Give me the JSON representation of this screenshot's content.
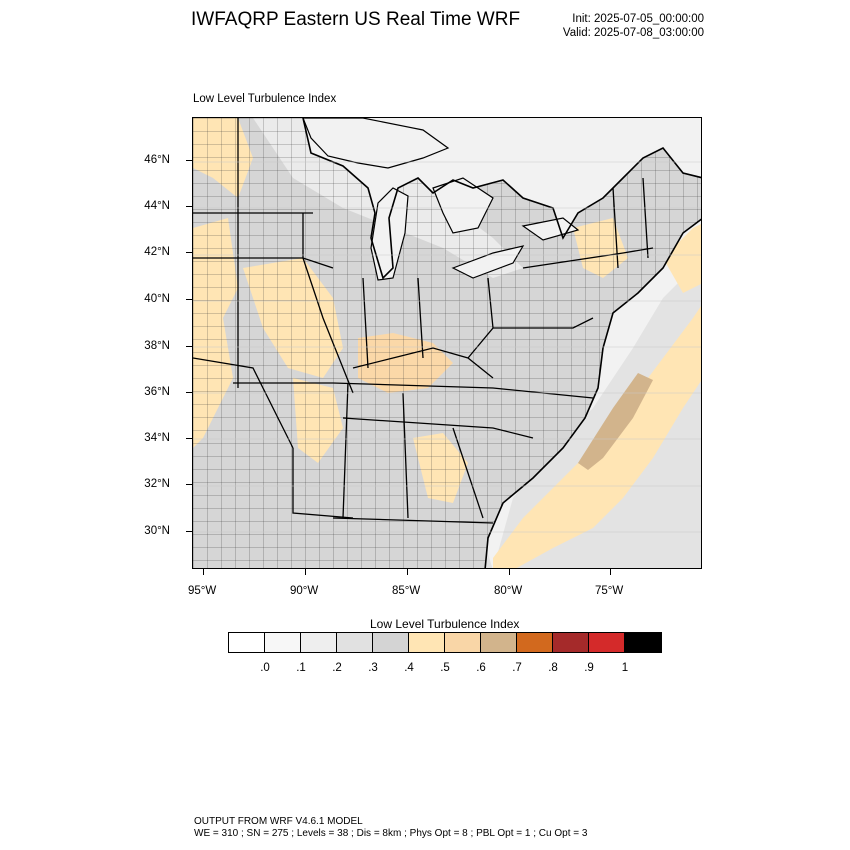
{
  "header": {
    "title": "IWFAQRP Eastern US Real Time WRF",
    "init": "Init: 2025-07-05_00:00:00",
    "valid": "Valid: 2025-07-08_03:00:00"
  },
  "map": {
    "field_title": "Low Level Turbulence Index",
    "lat_labels": [
      "46°N",
      "44°N",
      "42°N",
      "40°N",
      "38°N",
      "36°N",
      "34°N",
      "32°N",
      "30°N"
    ],
    "lon_labels": [
      "95°W",
      "90°W",
      "85°W",
      "80°W",
      "75°W"
    ],
    "colors": {
      "water": "#f2f2f2",
      "ocean_low": "#e3e3e3",
      "land_base": "#d6d6d6",
      "light": "#ebebeb",
      "orange_light": "#ffe5b4",
      "orange_mid": "#fbd8a8",
      "tan": "#d2b48c"
    }
  },
  "colorbar": {
    "title": "Low Level Turbulence Index",
    "colors": [
      "#ffffff",
      "#f7f7f7",
      "#eeeeee",
      "#e1e1e1",
      "#d4d4d4",
      "#ffe5b4",
      "#f9d6a7",
      "#d2b48c",
      "#d2691e",
      "#a52a2a",
      "#d42a2a",
      "#000000"
    ],
    "labels": [
      ".0",
      ".1",
      ".2",
      ".3",
      ".4",
      ".5",
      ".6",
      ".7",
      ".8",
      ".9",
      "1"
    ]
  },
  "footer": {
    "line1": "OUTPUT FROM WRF V4.6.1 MODEL",
    "line2": "WE = 310 ; SN = 275 ; Levels = 38 ; Dis = 8km ; Phys Opt = 8 ; PBL Opt = 1 ; Cu Opt = 3"
  }
}
